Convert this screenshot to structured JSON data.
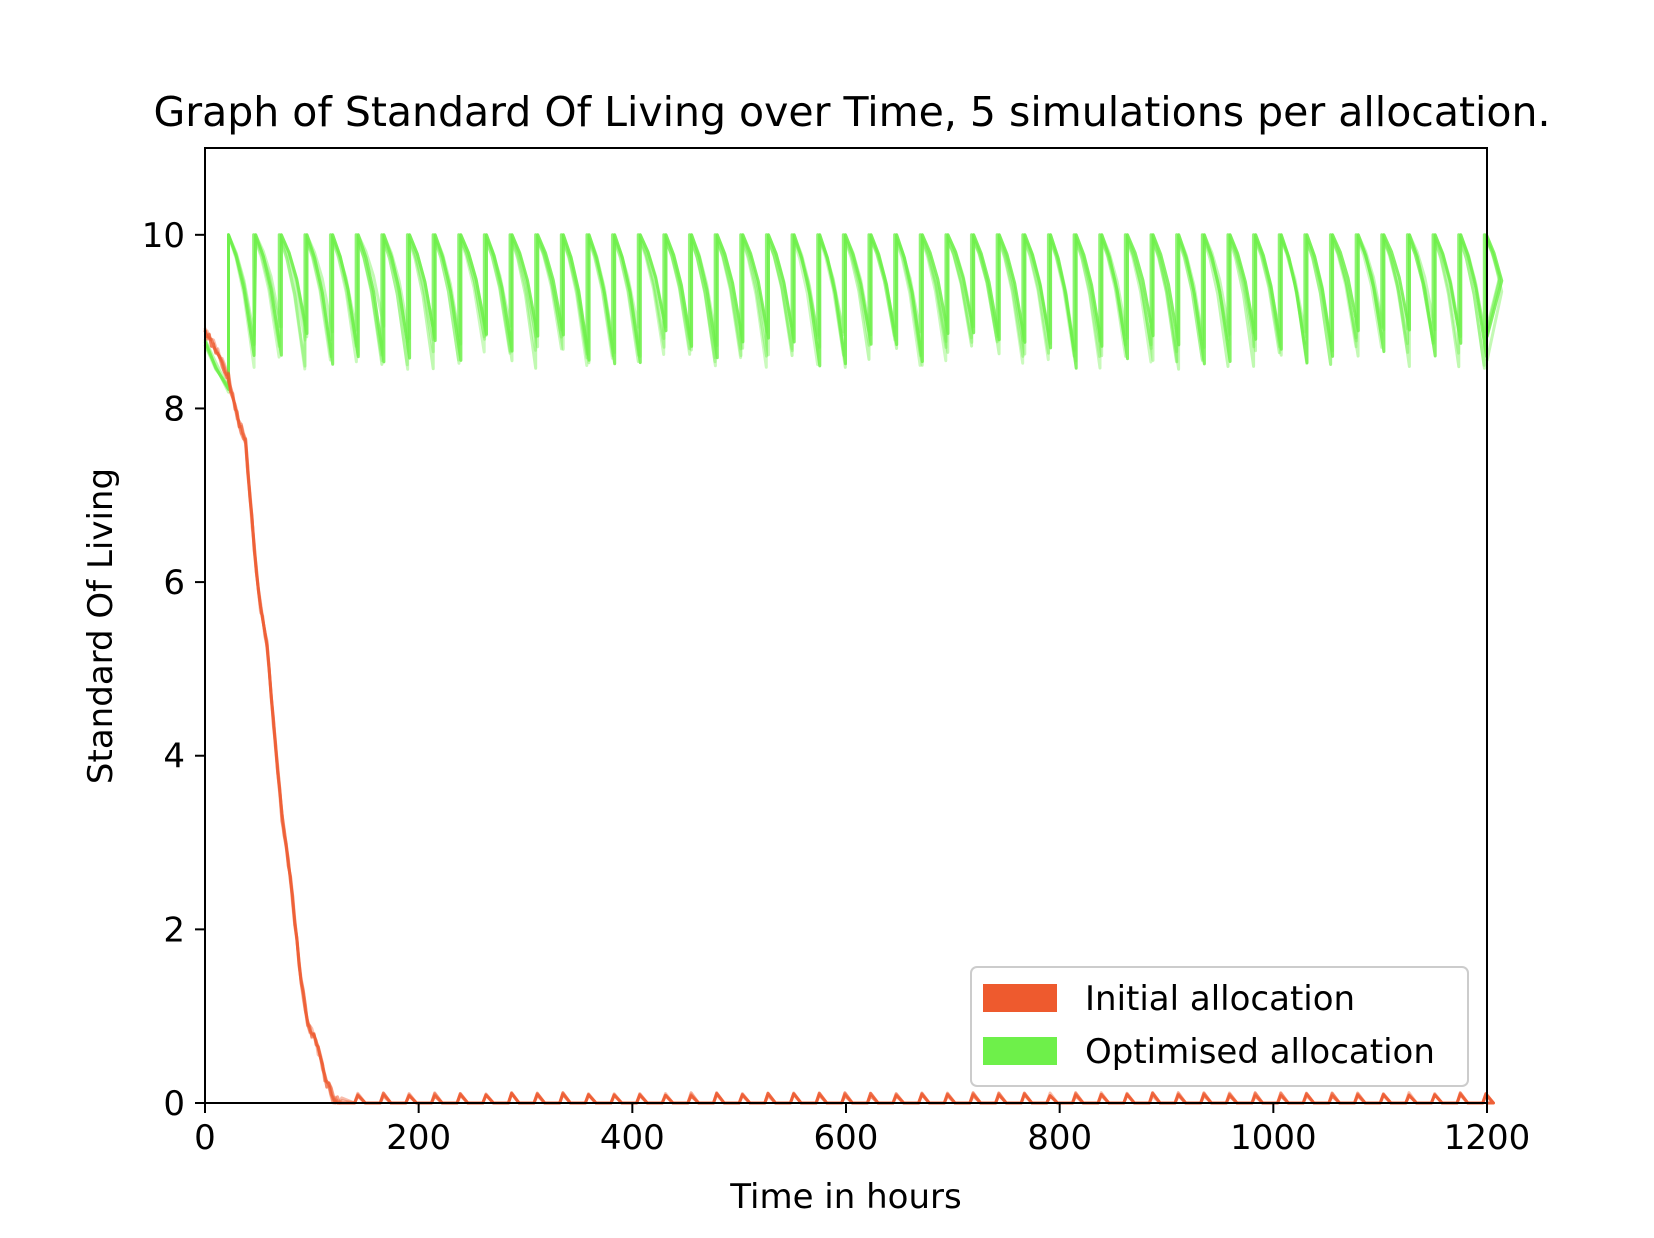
{
  "chart_data": {
    "type": "line",
    "title": "Graph of Standard Of Living over Time, 5 simulations per allocation.",
    "xlabel": "Time in hours",
    "ylabel": "Standard Of Living",
    "xlim": [
      0,
      1200
    ],
    "ylim": [
      0,
      11
    ],
    "xticks": [
      0,
      200,
      400,
      600,
      800,
      1000,
      1200
    ],
    "yticks": [
      0,
      2,
      4,
      6,
      8,
      10
    ],
    "grid": false,
    "legend_position": "lower-right",
    "simulations_per_allocation": 5,
    "series": [
      {
        "name": "Initial allocation",
        "color": "#EE5A2E",
        "decline": [
          [
            0,
            8.9
          ],
          [
            12,
            8.65
          ],
          [
            22,
            8.35
          ],
          [
            28,
            8.0
          ],
          [
            38,
            7.6
          ],
          [
            46,
            6.4
          ],
          [
            52,
            5.7
          ],
          [
            58,
            5.3
          ],
          [
            64,
            4.4
          ],
          [
            72,
            3.3
          ],
          [
            80,
            2.6
          ],
          [
            88,
            1.6
          ],
          [
            96,
            0.9
          ],
          [
            104,
            0.7
          ],
          [
            112,
            0.3
          ],
          [
            120,
            0.06
          ],
          [
            128,
            0.0
          ]
        ],
        "floor_value": 0.0,
        "spike_period_hours": 24,
        "spike_height": 0.08
      },
      {
        "name": "Optimised allocation",
        "color": "#6EF04A",
        "initial_decline": [
          [
            0,
            8.75
          ],
          [
            10,
            8.5
          ],
          [
            22,
            8.2
          ]
        ],
        "jump_hour": 22,
        "peak_value": 10.0,
        "cycle_period_hours": 24,
        "cycle_minimum": 9.0,
        "range_across_simulations": [
          8.4,
          10.0
        ]
      }
    ]
  }
}
